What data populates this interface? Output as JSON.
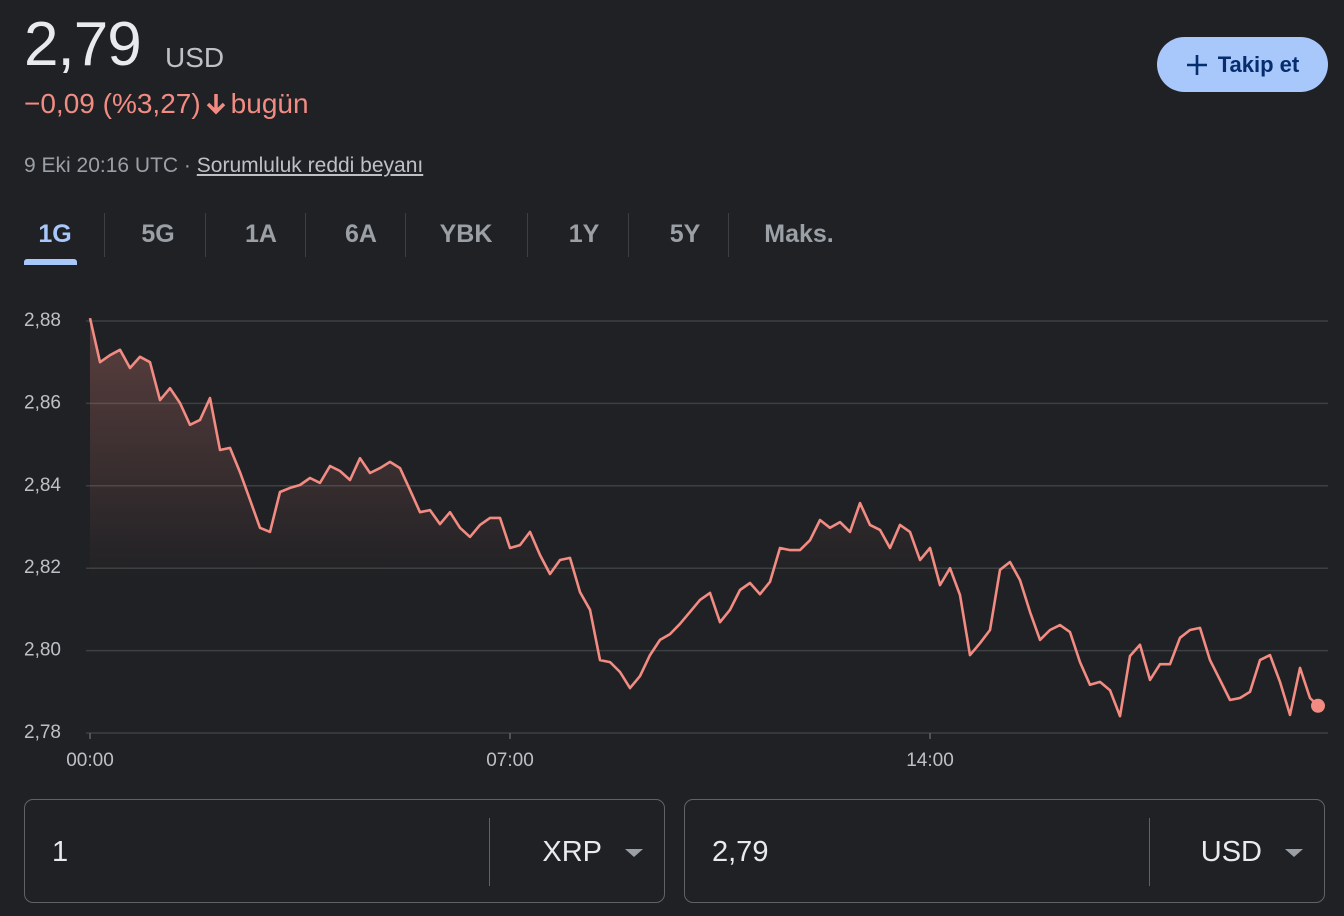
{
  "header": {
    "price": "2,79",
    "currency": "USD",
    "change": "−0,09 (%3,27)",
    "change_suffix": "bugün",
    "timestamp": "9 Eki 20:16 UTC",
    "separator": "·",
    "disclaimer": "Sorumluluk reddi beyanı",
    "follow_button": "Takip et"
  },
  "tabs": [
    "1G",
    "5G",
    "1A",
    "6A",
    "YBK",
    "1Y",
    "5Y",
    "Maks."
  ],
  "active_tab": 0,
  "chart_data": {
    "type": "line",
    "color": "#f28b82",
    "grid": true,
    "x": [
      0,
      10,
      20,
      30,
      40,
      50,
      60,
      70,
      80,
      90,
      100,
      110,
      120,
      130,
      140,
      150,
      160,
      170,
      180,
      190,
      200,
      210,
      220,
      230,
      240,
      250,
      260,
      270,
      280,
      290,
      300,
      310,
      320,
      330,
      340,
      350,
      360,
      370,
      380,
      390,
      400,
      410,
      420,
      430,
      440,
      450,
      460,
      470,
      480,
      490,
      500,
      510,
      520,
      530,
      540,
      550,
      560,
      570,
      580,
      590,
      600,
      610,
      620,
      630,
      640,
      650,
      660,
      670,
      680,
      690,
      700,
      710,
      720,
      730,
      740,
      750,
      760,
      770,
      780,
      790,
      800,
      810,
      820,
      830,
      840,
      850,
      860,
      870,
      880,
      890,
      900,
      910,
      920,
      930,
      940,
      950,
      960,
      970,
      980,
      990,
      1000,
      1010,
      1020,
      1030,
      1040,
      1050,
      1060,
      1070,
      1080,
      1090,
      1100,
      1110,
      1120,
      1130,
      1140,
      1150,
      1160,
      1170,
      1180,
      1190,
      1200,
      1210,
      1220,
      1228
    ],
    "values": [
      2.8807,
      2.87,
      2.8717,
      2.873,
      2.8686,
      2.8713,
      2.87,
      2.8608,
      2.8637,
      2.8601,
      2.8548,
      2.856,
      2.8613,
      2.8487,
      2.8492,
      2.8433,
      2.8366,
      2.8298,
      2.8288,
      2.8385,
      2.8395,
      2.8402,
      2.8419,
      2.8407,
      2.8448,
      2.8436,
      2.8414,
      2.8467,
      2.8431,
      2.8443,
      2.8458,
      2.8443,
      2.839,
      2.8336,
      2.8341,
      2.8307,
      2.8336,
      2.8298,
      2.8276,
      2.8305,
      2.8322,
      2.8322,
      2.8249,
      2.8256,
      2.8288,
      2.8232,
      2.8186,
      2.822,
      2.8225,
      2.8142,
      2.8099,
      2.7977,
      2.7972,
      2.7948,
      2.7909,
      2.7938,
      2.7989,
      2.8026,
      2.804,
      2.8065,
      2.8094,
      2.8123,
      2.814,
      2.8069,
      2.8099,
      2.8147,
      2.8164,
      2.8137,
      2.8167,
      2.8249,
      2.8244,
      2.8244,
      2.8268,
      2.8317,
      2.8298,
      2.8312,
      2.8288,
      2.8358,
      2.8305,
      2.8293,
      2.8249,
      2.8305,
      2.8288,
      2.822,
      2.8249,
      2.8159,
      2.82,
      2.8135,
      2.7989,
      2.8018,
      2.805,
      2.8196,
      2.8215,
      2.8171,
      2.8094,
      2.8026,
      2.805,
      2.8062,
      2.8045,
      2.7972,
      2.7917,
      2.7924,
      2.7904,
      2.7841,
      2.7987,
      2.8014,
      2.7929,
      2.7967,
      2.7967,
      2.8031,
      2.805,
      2.8055,
      2.7977,
      2.7929,
      2.788,
      2.7885,
      2.79,
      2.7977,
      2.7989,
      2.7924,
      2.7844,
      2.7958,
      2.7885,
      2.7866
    ],
    "xlim": [
      0,
      1228
    ],
    "xticks": [
      {
        "value": 0,
        "label": "00:00"
      },
      {
        "value": 420,
        "label": "07:00"
      },
      {
        "value": 840,
        "label": "14:00"
      }
    ],
    "ylim": [
      2.78,
      2.88
    ],
    "yticks": [
      {
        "value": 2.78,
        "label": "2,78"
      },
      {
        "value": 2.8,
        "label": "2,80"
      },
      {
        "value": 2.82,
        "label": "2,82"
      },
      {
        "value": 2.84,
        "label": "2,84"
      },
      {
        "value": 2.86,
        "label": "2,86"
      },
      {
        "value": 2.88,
        "label": "2,88"
      }
    ]
  },
  "converter": {
    "from": {
      "amount": "1",
      "unit": "XRP"
    },
    "to": {
      "amount": "2,79",
      "unit": "USD"
    }
  }
}
